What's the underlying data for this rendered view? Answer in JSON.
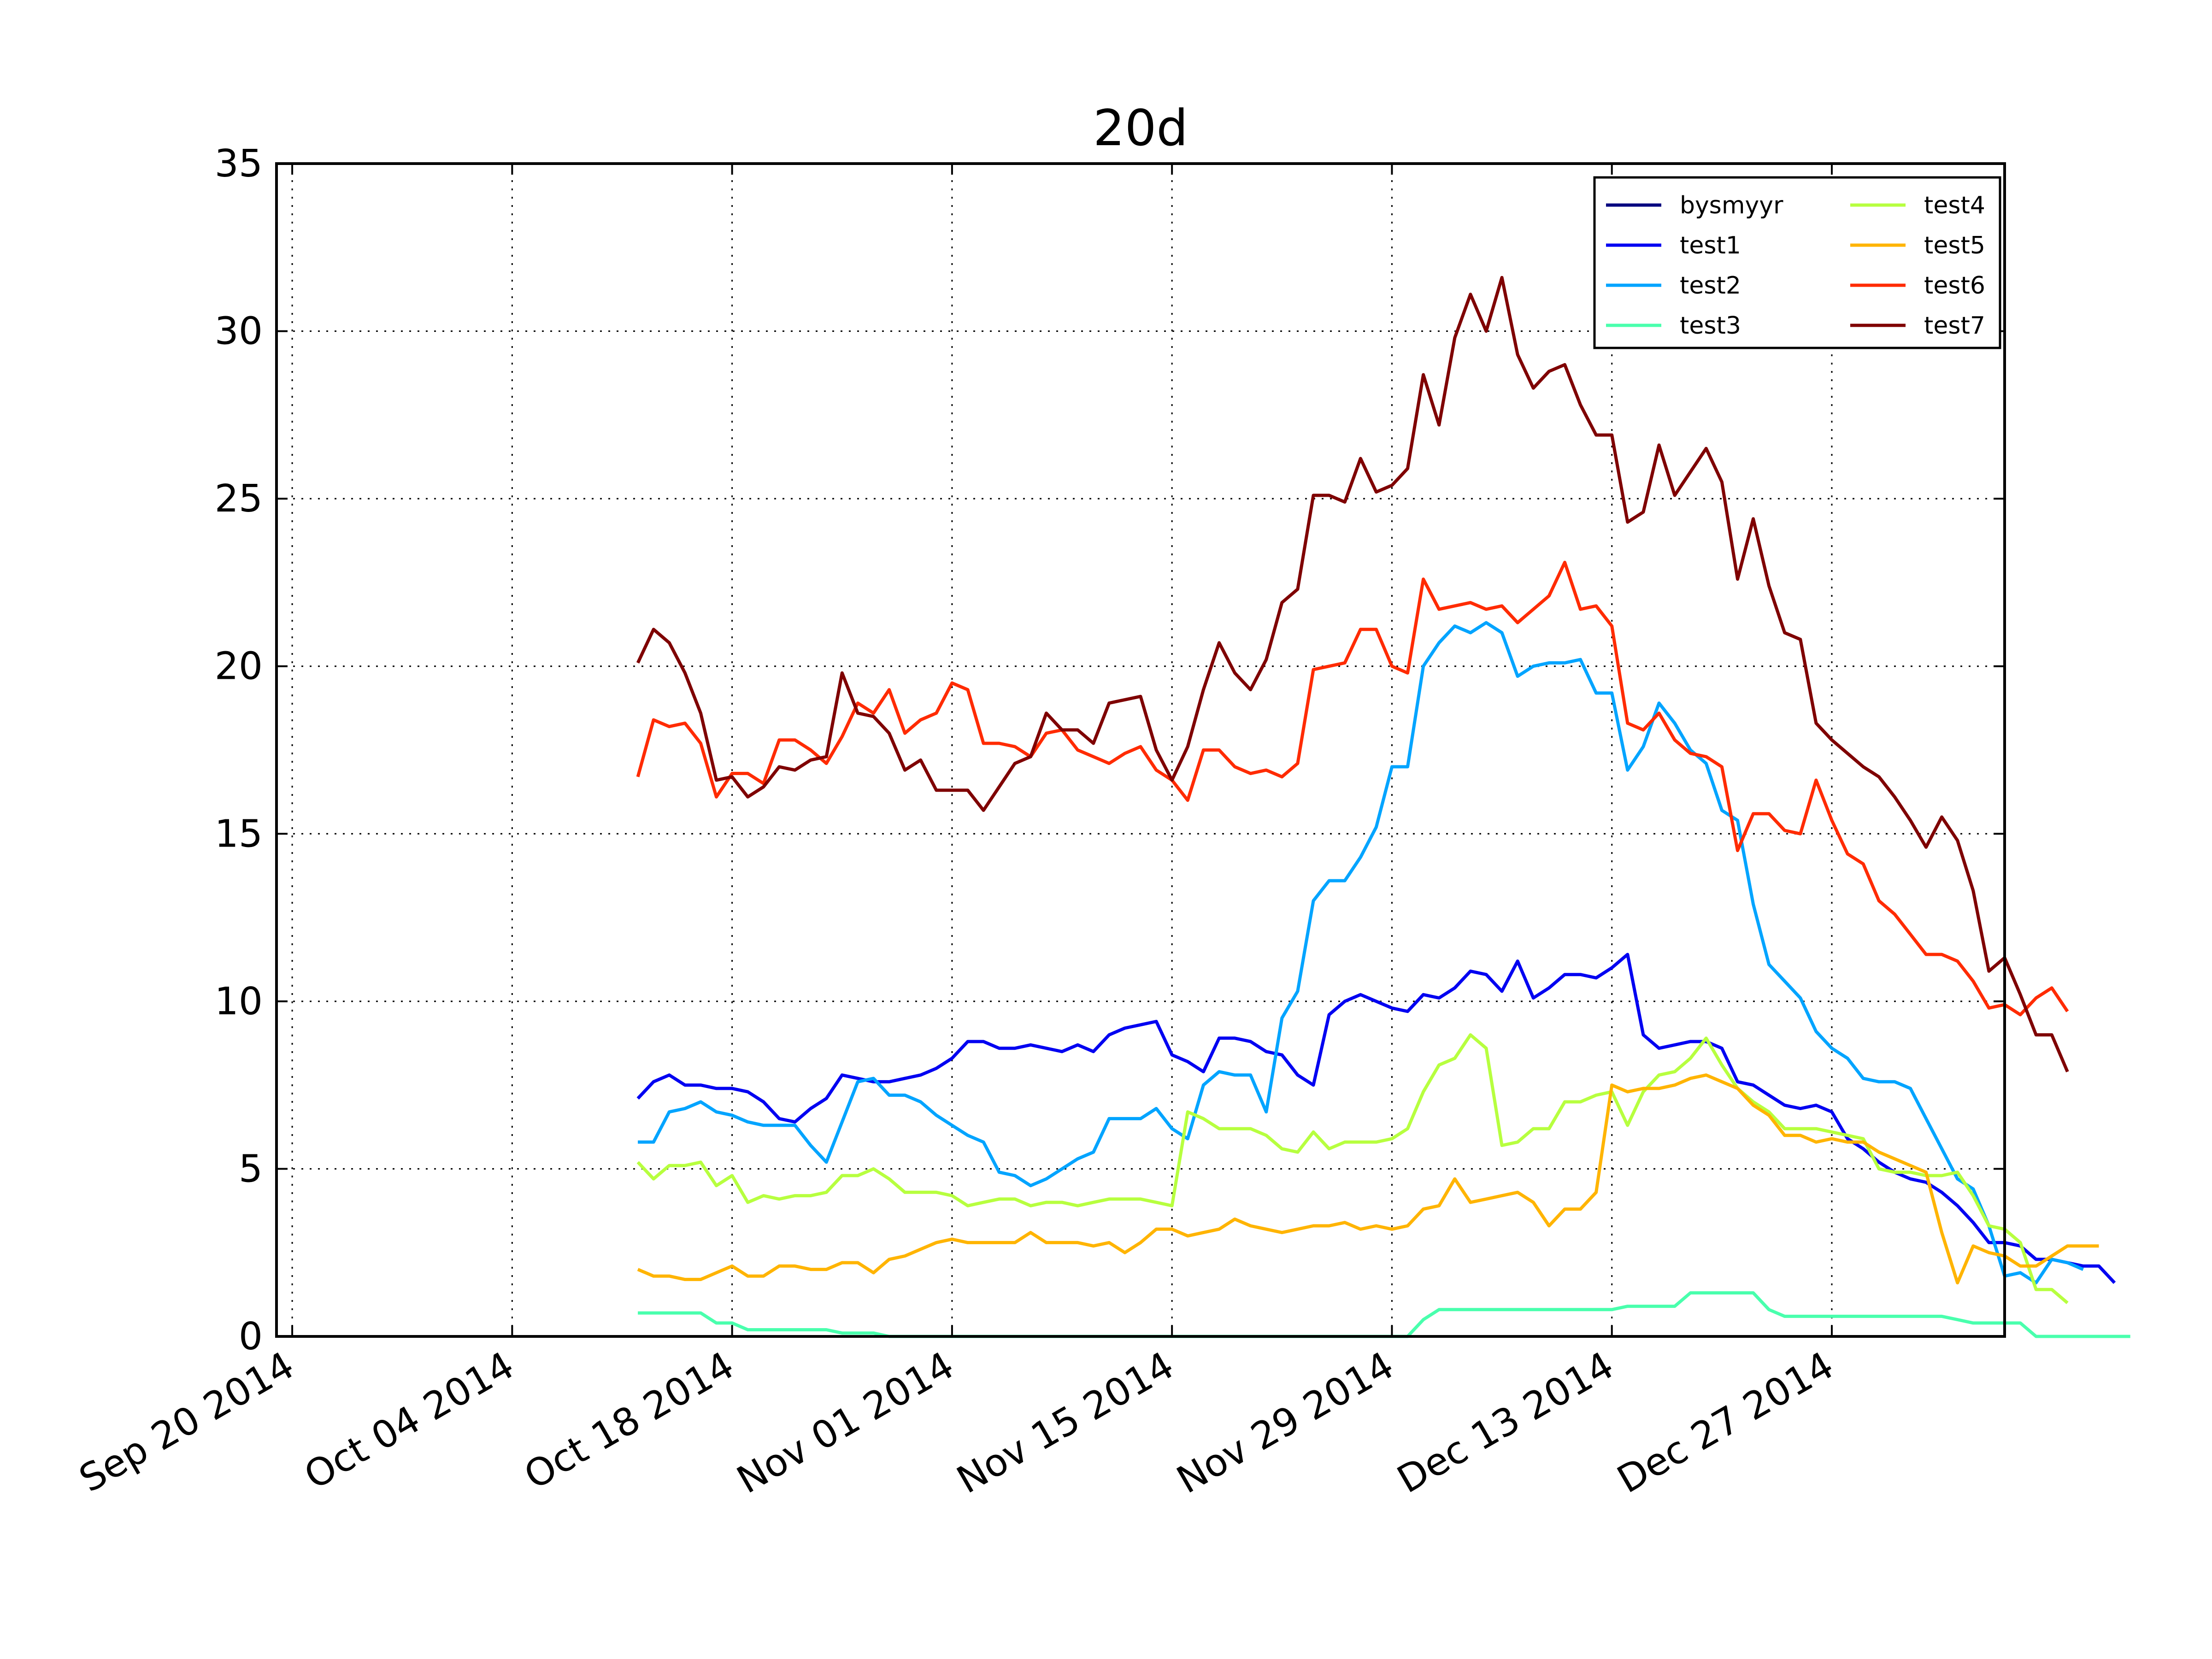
{
  "chart_data": {
    "type": "line",
    "title": "20d",
    "xlabel": "",
    "ylabel": "",
    "x_start": "2014-10-12",
    "x_step_days": 1,
    "xlim": [
      "2014-09-19",
      "2015-01-07"
    ],
    "ylim": [
      0,
      35
    ],
    "xticks": [
      "2014-09-20",
      "2014-10-04",
      "2014-10-18",
      "2014-11-01",
      "2014-11-15",
      "2014-11-29",
      "2014-12-13",
      "2014-12-27"
    ],
    "xtick_labels": [
      "Sep 20 2014",
      "Oct 04 2014",
      "Oct 18 2014",
      "Nov 01 2014",
      "Nov 15 2014",
      "Nov 29 2014",
      "Dec 13 2014",
      "Dec 27 2014"
    ],
    "yticks": [
      0,
      5,
      10,
      15,
      20,
      25,
      30,
      35
    ],
    "ytick_labels": [
      "0",
      "5",
      "10",
      "15",
      "20",
      "25",
      "30",
      "35"
    ],
    "grid": true,
    "legend": {
      "position": "top-right",
      "columns": 2
    },
    "series": [
      {
        "name": "bysmyyr",
        "color": "#00007f",
        "values": []
      },
      {
        "name": "test1",
        "color": "#0000f1",
        "values": [
          7.1,
          7.6,
          7.8,
          7.5,
          7.5,
          7.4,
          7.4,
          7.3,
          7.0,
          6.5,
          6.4,
          6.8,
          7.1,
          7.8,
          7.7,
          7.6,
          7.6,
          7.7,
          7.8,
          8.0,
          8.3,
          8.8,
          8.8,
          8.6,
          8.6,
          8.7,
          8.6,
          8.5,
          8.7,
          8.5,
          9.0,
          9.2,
          9.3,
          9.4,
          8.4,
          8.2,
          7.9,
          8.9,
          8.9,
          8.8,
          8.5,
          8.4,
          7.8,
          7.5,
          9.6,
          10.0,
          10.2,
          10.0,
          9.8,
          9.7,
          10.2,
          10.1,
          10.4,
          10.9,
          10.8,
          10.3,
          11.2,
          10.1,
          10.4,
          10.8,
          10.8,
          10.7,
          11.0,
          11.4,
          9.0,
          8.6,
          8.7,
          8.8,
          8.8,
          8.6,
          7.6,
          7.5,
          7.2,
          6.9,
          6.8,
          6.9,
          6.7,
          5.9,
          5.6,
          5.2,
          4.9,
          4.7,
          4.6,
          4.3,
          3.9,
          3.4,
          2.8,
          2.8,
          2.7,
          2.3,
          2.3,
          2.2,
          2.1,
          2.1,
          1.6
        ]
      },
      {
        "name": "test2",
        "color": "#00a4ff",
        "values": [
          5.8,
          5.8,
          6.7,
          6.8,
          7.0,
          6.7,
          6.6,
          6.4,
          6.3,
          6.3,
          6.3,
          5.7,
          5.2,
          6.4,
          7.6,
          7.7,
          7.2,
          7.2,
          7.0,
          6.6,
          6.3,
          6.0,
          5.8,
          4.9,
          4.8,
          4.5,
          4.7,
          5.0,
          5.3,
          5.5,
          6.5,
          6.5,
          6.5,
          6.8,
          6.2,
          5.9,
          7.5,
          7.9,
          7.8,
          7.8,
          6.7,
          9.5,
          10.3,
          13.0,
          13.6,
          13.6,
          14.3,
          15.2,
          17.0,
          17.0,
          20.0,
          20.7,
          21.2,
          21.0,
          21.3,
          21.0,
          19.7,
          20.0,
          20.1,
          20.1,
          20.2,
          19.2,
          19.2,
          16.9,
          17.6,
          18.9,
          18.3,
          17.5,
          17.1,
          15.7,
          15.4,
          12.9,
          11.1,
          10.6,
          10.1,
          9.1,
          8.6,
          8.3,
          7.7,
          7.6,
          7.6,
          7.4,
          6.5,
          5.6,
          4.7,
          4.4,
          3.3,
          1.8,
          1.9,
          1.6,
          2.3,
          2.2,
          2.0
        ]
      },
      {
        "name": "test3",
        "color": "#49ffad",
        "values": [
          0.7,
          0.7,
          0.7,
          0.7,
          0.7,
          0.4,
          0.4,
          0.2,
          0.2,
          0.2,
          0.2,
          0.2,
          0.2,
          0.1,
          0.1,
          0.1,
          0.0,
          0.0,
          0.0,
          0.0,
          0.0,
          0.0,
          0.0,
          0.0,
          0.0,
          0.0,
          0.0,
          0.0,
          0.0,
          0.0,
          0.0,
          0.0,
          0.0,
          0.0,
          0.0,
          0.0,
          0.0,
          0.0,
          0.0,
          0.0,
          0.0,
          0.0,
          0.0,
          0.0,
          0.0,
          0.0,
          0.0,
          0.0,
          0.0,
          0.0,
          0.5,
          0.8,
          0.8,
          0.8,
          0.8,
          0.8,
          0.8,
          0.8,
          0.8,
          0.8,
          0.8,
          0.8,
          0.8,
          0.9,
          0.9,
          0.9,
          0.9,
          1.3,
          1.3,
          1.3,
          1.3,
          1.3,
          0.8,
          0.6,
          0.6,
          0.6,
          0.6,
          0.6,
          0.6,
          0.6,
          0.6,
          0.6,
          0.6,
          0.6,
          0.5,
          0.4,
          0.4,
          0.4,
          0.4,
          0.0,
          0.0,
          0.0,
          0.0,
          0.0,
          0.0,
          0.0
        ]
      },
      {
        "name": "test4",
        "color": "#b7ff3f",
        "values": [
          5.2,
          4.7,
          5.1,
          5.1,
          5.2,
          4.5,
          4.8,
          4.0,
          4.2,
          4.1,
          4.2,
          4.2,
          4.3,
          4.8,
          4.8,
          5.0,
          4.7,
          4.3,
          4.3,
          4.3,
          4.2,
          3.9,
          4.0,
          4.1,
          4.1,
          3.9,
          4.0,
          4.0,
          3.9,
          4.0,
          4.1,
          4.1,
          4.1,
          4.0,
          3.9,
          6.7,
          6.5,
          6.2,
          6.2,
          6.2,
          6.0,
          5.6,
          5.5,
          6.1,
          5.6,
          5.8,
          5.8,
          5.8,
          5.9,
          6.2,
          7.3,
          8.1,
          8.3,
          9.0,
          8.6,
          5.7,
          5.8,
          6.2,
          6.2,
          7.0,
          7.0,
          7.2,
          7.3,
          6.3,
          7.3,
          7.8,
          7.9,
          8.3,
          8.9,
          8.1,
          7.4,
          7.0,
          6.7,
          6.2,
          6.2,
          6.2,
          6.1,
          6.0,
          5.9,
          5.0,
          4.9,
          4.9,
          4.8,
          4.8,
          4.9,
          4.2,
          3.3,
          3.2,
          2.8,
          1.4,
          1.4,
          1.0
        ]
      },
      {
        "name": "test5",
        "color": "#ffb400",
        "values": [
          2.0,
          1.8,
          1.8,
          1.7,
          1.7,
          1.9,
          2.1,
          1.8,
          1.8,
          2.1,
          2.1,
          2.0,
          2.0,
          2.2,
          2.2,
          1.9,
          2.3,
          2.4,
          2.6,
          2.8,
          2.9,
          2.8,
          2.8,
          2.8,
          2.8,
          3.1,
          2.8,
          2.8,
          2.8,
          2.7,
          2.8,
          2.5,
          2.8,
          3.2,
          3.2,
          3.0,
          3.1,
          3.2,
          3.5,
          3.3,
          3.2,
          3.1,
          3.2,
          3.3,
          3.3,
          3.4,
          3.2,
          3.3,
          3.2,
          3.3,
          3.8,
          3.9,
          4.7,
          4.0,
          4.1,
          4.2,
          4.3,
          4.0,
          3.3,
          3.8,
          3.8,
          4.3,
          7.5,
          7.3,
          7.4,
          7.4,
          7.5,
          7.7,
          7.8,
          7.6,
          7.4,
          6.9,
          6.6,
          6.0,
          6.0,
          5.8,
          5.9,
          5.8,
          5.8,
          5.5,
          5.3,
          5.1,
          4.9,
          3.1,
          1.6,
          2.7,
          2.5,
          2.4,
          2.1,
          2.1,
          2.4,
          2.7,
          2.7,
          2.7
        ]
      },
      {
        "name": "test6",
        "color": "#ff2b00",
        "values": [
          16.7,
          18.4,
          18.2,
          18.3,
          17.7,
          16.1,
          16.8,
          16.8,
          16.5,
          17.8,
          17.8,
          17.5,
          17.1,
          17.9,
          18.9,
          18.6,
          19.3,
          18.0,
          18.4,
          18.6,
          19.5,
          19.3,
          17.7,
          17.7,
          17.6,
          17.3,
          18.0,
          18.1,
          17.5,
          17.3,
          17.1,
          17.4,
          17.6,
          16.9,
          16.6,
          16.0,
          17.5,
          17.5,
          17.0,
          16.8,
          16.9,
          16.7,
          17.1,
          19.9,
          20.0,
          20.1,
          21.1,
          21.1,
          20.0,
          19.8,
          22.6,
          21.7,
          21.8,
          21.9,
          21.7,
          21.8,
          21.3,
          21.7,
          22.1,
          23.1,
          21.7,
          21.8,
          21.2,
          18.3,
          18.1,
          18.6,
          17.8,
          17.4,
          17.3,
          17.0,
          14.5,
          15.6,
          15.6,
          15.1,
          15.0,
          16.6,
          15.4,
          14.4,
          14.1,
          13.0,
          12.6,
          12.0,
          11.4,
          11.4,
          11.2,
          10.6,
          9.8,
          9.9,
          9.6,
          10.1,
          10.4,
          9.7
        ]
      },
      {
        "name": "test7",
        "color": "#7f0000",
        "values": [
          20.1,
          21.1,
          20.7,
          19.8,
          18.6,
          16.6,
          16.7,
          16.1,
          16.4,
          17.0,
          16.9,
          17.2,
          17.3,
          19.8,
          18.6,
          18.5,
          18.0,
          16.9,
          17.2,
          16.3,
          16.3,
          16.3,
          15.7,
          16.4,
          17.1,
          17.3,
          18.6,
          18.1,
          18.1,
          17.7,
          18.9,
          19.0,
          19.1,
          17.5,
          16.6,
          17.6,
          19.3,
          20.7,
          19.8,
          19.3,
          20.2,
          21.9,
          22.3,
          25.1,
          25.1,
          24.9,
          26.2,
          25.2,
          25.4,
          25.9,
          28.7,
          27.2,
          29.8,
          31.1,
          30.0,
          31.6,
          29.3,
          28.3,
          28.8,
          29.0,
          27.8,
          26.9,
          26.9,
          24.3,
          24.6,
          26.6,
          25.1,
          25.8,
          26.5,
          25.5,
          22.6,
          24.4,
          22.4,
          21.0,
          20.8,
          18.3,
          17.8,
          17.4,
          17.0,
          16.7,
          16.1,
          15.4,
          14.6,
          15.5,
          14.8,
          13.3,
          10.9,
          11.3,
          10.2,
          9.0,
          9.0,
          7.9
        ]
      }
    ]
  }
}
